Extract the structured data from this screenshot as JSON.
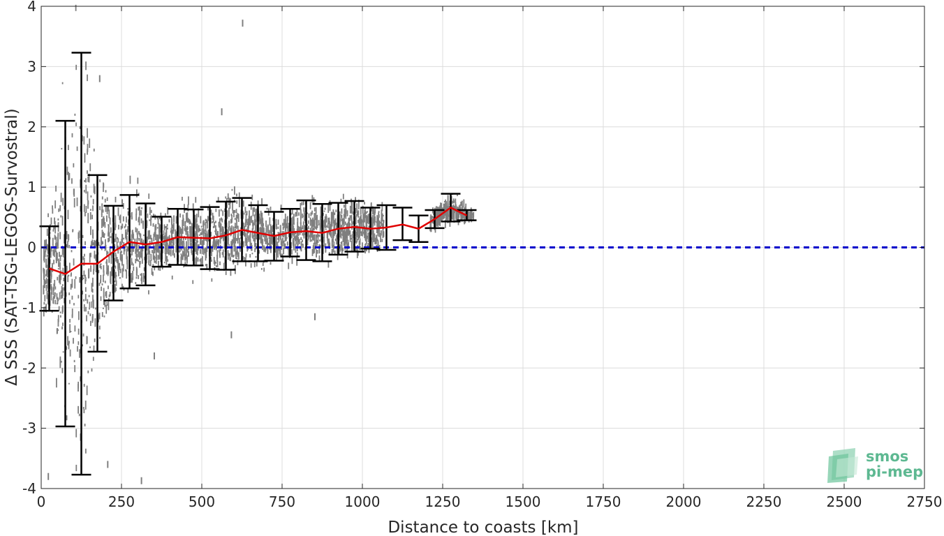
{
  "chart_data": {
    "type": "scatter",
    "xlabel": "Distance to coasts [km]",
    "ylabel": "Δ SSS (SAT-TSG-LEGOS-Survostral)",
    "xlim": [
      0,
      2750
    ],
    "ylim": [
      -4,
      4
    ],
    "xticks": [
      0,
      250,
      500,
      750,
      1000,
      1250,
      1500,
      1750,
      2000,
      2250,
      2500,
      2750
    ],
    "yticks": [
      -4,
      -3,
      -2,
      -1,
      0,
      1,
      2,
      3,
      4
    ],
    "grid": true,
    "zero_line": {
      "y": 0,
      "color": "#0000cc",
      "style": "dashed"
    },
    "mean_series": {
      "color": "#e00000",
      "x": [
        25,
        75,
        125,
        175,
        225,
        275,
        325,
        375,
        425,
        475,
        525,
        575,
        625,
        675,
        725,
        775,
        825,
        875,
        925,
        975,
        1025,
        1075,
        1125,
        1175,
        1225,
        1275,
        1325
      ],
      "y": [
        -0.35,
        -0.44,
        -0.27,
        -0.27,
        -0.07,
        0.09,
        0.05,
        0.09,
        0.17,
        0.16,
        0.15,
        0.2,
        0.29,
        0.24,
        0.19,
        0.25,
        0.27,
        0.24,
        0.31,
        0.34,
        0.31,
        0.33,
        0.38,
        0.31,
        0.47,
        0.66,
        0.53
      ]
    },
    "error_bars": {
      "color": "#000000",
      "x": [
        25,
        75,
        125,
        175,
        225,
        275,
        325,
        375,
        425,
        475,
        525,
        575,
        625,
        675,
        725,
        775,
        825,
        875,
        925,
        975,
        1025,
        1075,
        1125,
        1175,
        1225,
        1275,
        1325
      ],
      "upper": [
        0.35,
        2.1,
        3.23,
        1.2,
        0.69,
        0.87,
        0.73,
        0.51,
        0.64,
        0.63,
        0.67,
        0.76,
        0.82,
        0.7,
        0.59,
        0.64,
        0.78,
        0.72,
        0.74,
        0.77,
        0.66,
        0.7,
        0.66,
        0.53,
        0.62,
        0.89,
        0.62
      ],
      "lower": [
        -1.05,
        -2.97,
        -3.77,
        -1.73,
        -0.88,
        -0.68,
        -0.63,
        -0.32,
        -0.29,
        -0.3,
        -0.36,
        -0.37,
        -0.23,
        -0.23,
        -0.22,
        -0.15,
        -0.21,
        -0.23,
        -0.12,
        -0.07,
        -0.02,
        -0.04,
        0.12,
        0.09,
        0.32,
        0.43,
        0.45
      ]
    },
    "scatter_color": "#7f7f7f",
    "scatter_note_outliers": [
      {
        "x": 625,
        "y": 3.72
      },
      {
        "x": 310,
        "y": -3.87
      },
      {
        "x": 20,
        "y": -3.8
      },
      {
        "x": 180,
        "y": 2.8
      },
      {
        "x": 560,
        "y": 2.25
      },
      {
        "x": 205,
        "y": -3.6
      },
      {
        "x": 350,
        "y": -1.8
      },
      {
        "x": 590,
        "y": -1.45
      },
      {
        "x": 850,
        "y": -1.15
      }
    ]
  },
  "logo": {
    "line1": "smos",
    "line2": "pi-mep"
  }
}
